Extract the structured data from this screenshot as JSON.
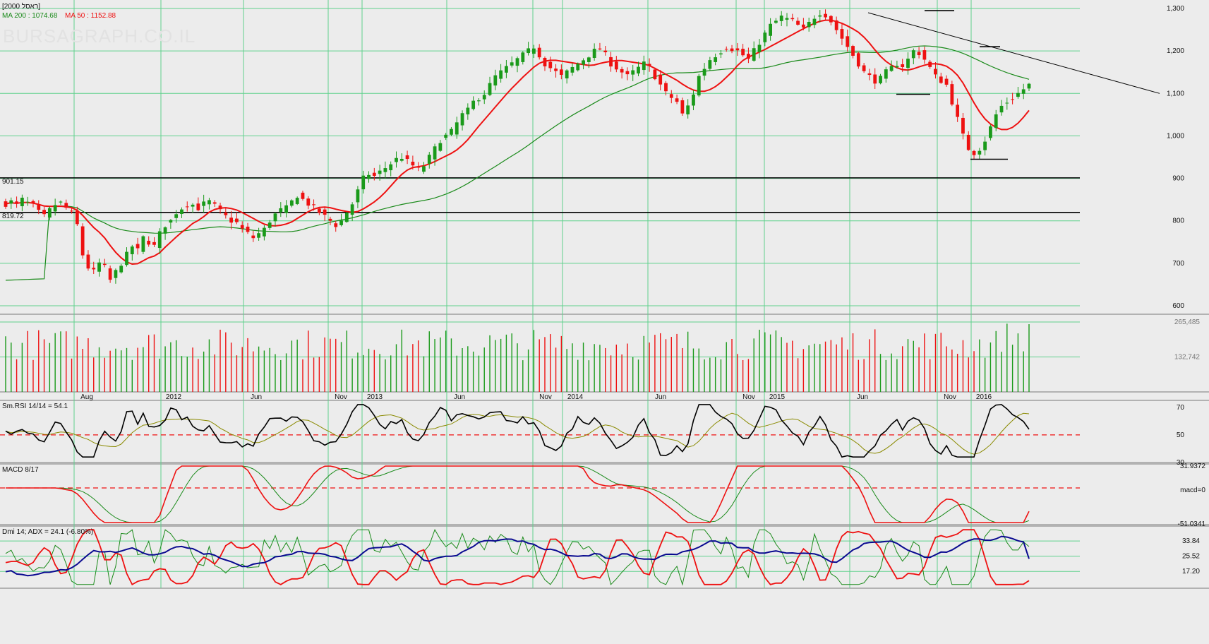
{
  "header": {
    "instrument_title": "[ראסל 2000]",
    "ma200_label": "MA 200 : 1074.68",
    "ma50_label": "MA 50 : 1152.88",
    "watermark": "BURSAGRAPH.CO.IL"
  },
  "colors": {
    "background": "#ececec",
    "grid": "#5fd18c",
    "up": "#1a9a1a",
    "down": "#ee1111",
    "ma50": "#ee1111",
    "ma200": "#1a8a1a",
    "rsi": "#000000",
    "rsi_signal": "#8a8a00",
    "adx": "#0a0a90"
  },
  "chart_data": [
    {
      "type": "candlestick",
      "title": "[ראסל 2000]",
      "ylim": [
        580,
        1320
      ],
      "y_ticks": [
        "1,300",
        "1,200",
        "1,100",
        "1,000",
        "900",
        "800",
        "700",
        "600"
      ],
      "x_ticks": [
        "Aug",
        "2012",
        "Jun",
        "Nov",
        "2013",
        "Jun",
        "Nov",
        "2014",
        "Jun",
        "Nov",
        "2015",
        "Jun",
        "Nov",
        "2016"
      ],
      "horizontal_lines": [
        {
          "label": "901.15",
          "value": 901.15
        },
        {
          "label": "819.72",
          "value": 819.72
        }
      ],
      "ma_series": [
        {
          "name": "MA 200",
          "last": 1074.68
        },
        {
          "name": "MA 50",
          "last": 1152.88
        }
      ],
      "close_path": [
        840,
        845,
        838,
        850,
        842,
        835,
        820,
        810,
        825,
        838,
        842,
        830,
        818,
        790,
        720,
        690,
        680,
        700,
        690,
        660,
        680,
        700,
        720,
        740,
        730,
        760,
        750,
        740,
        770,
        790,
        800,
        820,
        830,
        840,
        838,
        830,
        840,
        845,
        835,
        822,
        810,
        800,
        795,
        780,
        770,
        760,
        770,
        780,
        800,
        815,
        825,
        830,
        845,
        860,
        850,
        840,
        830,
        820,
        810,
        800,
        790,
        800,
        820,
        840,
        870,
        900,
        910,
        905,
        915,
        925,
        935,
        945,
        950,
        940,
        930,
        920,
        930,
        950,
        970,
        990,
        1000,
        1010,
        1030,
        1050,
        1060,
        1080,
        1090,
        1100,
        1120,
        1140,
        1150,
        1160,
        1170,
        1180,
        1190,
        1200,
        1210,
        1190,
        1170,
        1160,
        1150,
        1140,
        1150,
        1160,
        1170,
        1180,
        1190,
        1200,
        1205,
        1190,
        1170,
        1160,
        1150,
        1140,
        1150,
        1160,
        1170,
        1160,
        1140,
        1120,
        1100,
        1090,
        1080,
        1050,
        1070,
        1100,
        1140,
        1160,
        1180,
        1190,
        1200,
        1210,
        1205,
        1200,
        1190,
        1180,
        1200,
        1220,
        1240,
        1260,
        1270,
        1280,
        1275,
        1270,
        1260,
        1250,
        1265,
        1280,
        1290,
        1285,
        1270,
        1250,
        1230,
        1210,
        1190,
        1170,
        1150,
        1140,
        1130,
        1135,
        1150,
        1160,
        1170,
        1165,
        1180,
        1200,
        1195,
        1180,
        1160,
        1140,
        1130,
        1120,
        1080,
        1040,
        1000,
        970,
        960,
        970,
        990,
        1020,
        1050,
        1070,
        1080,
        1090,
        1100,
        1110,
        1120
      ]
    },
    {
      "type": "bar",
      "title": "Volume",
      "y_ticks": [
        "265,485",
        "132,742"
      ]
    },
    {
      "type": "line",
      "title": "Sm.RSI 14/14 = 54.1",
      "ylim": [
        30,
        75
      ],
      "y_ticks": [
        "70",
        "50",
        "30"
      ],
      "reference_line": 50,
      "last": 54.1
    },
    {
      "type": "line",
      "title": "MACD 8/17",
      "y_ticks": [
        "31.9372",
        "macd=0",
        "-51.0341"
      ],
      "reference_line": 0
    },
    {
      "type": "line",
      "title": "Dmi 14; ADX = 24.1 (-6.80%)",
      "y_ticks": [
        "33.84",
        "25.52",
        "17.20"
      ],
      "adx_last": 24.1
    }
  ]
}
